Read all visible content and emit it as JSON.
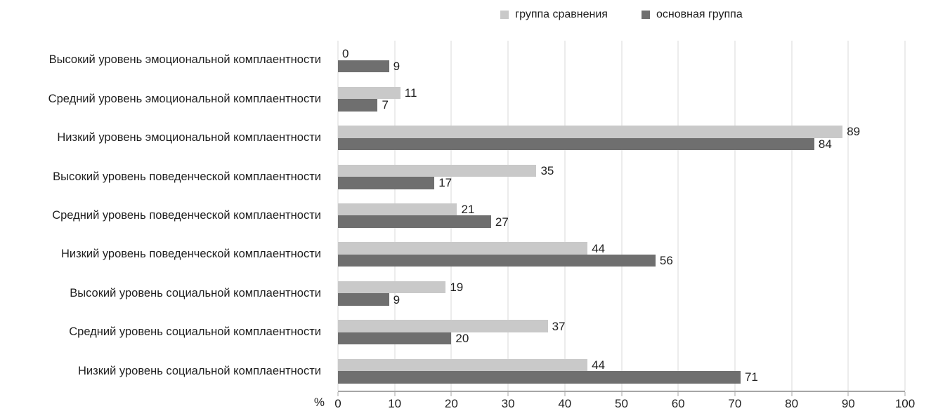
{
  "chart_data": {
    "type": "bar",
    "orientation": "horizontal",
    "title": "",
    "categories": [
      "Высокий уровень эмоциональной комплаентности",
      "Средний уровень эмоциональной комплаентности",
      "Низкий уровень эмоциональной комплаентности",
      "Высокий уровень поведенческой комплаентности",
      "Средний уровень поведенческой комплаентности",
      "Низкий уровень поведенческой комплаентности",
      "Высокий уровень социальной комплаентности",
      "Средний уровень социальной комплаентности",
      "Низкий уровень социальной комплаентности"
    ],
    "series": [
      {
        "name": "группа сравнения",
        "color": "#c9c9c9",
        "values": [
          0,
          11,
          89,
          35,
          21,
          44,
          19,
          37,
          44
        ]
      },
      {
        "name": "основная группа",
        "color": "#6f6f6f",
        "values": [
          9,
          7,
          84,
          17,
          27,
          56,
          9,
          20,
          71
        ]
      }
    ],
    "xlabel": "%",
    "ylabel": "",
    "xlim": [
      0,
      100
    ],
    "xticks": [
      0,
      10,
      20,
      30,
      40,
      50,
      60,
      70,
      80,
      90,
      100
    ],
    "grid": true,
    "legend_position": "top-center",
    "colors": {
      "gridline": "#d9d9d9",
      "axis_line": "#a6a6a6",
      "text": "#1f1f1f"
    }
  }
}
